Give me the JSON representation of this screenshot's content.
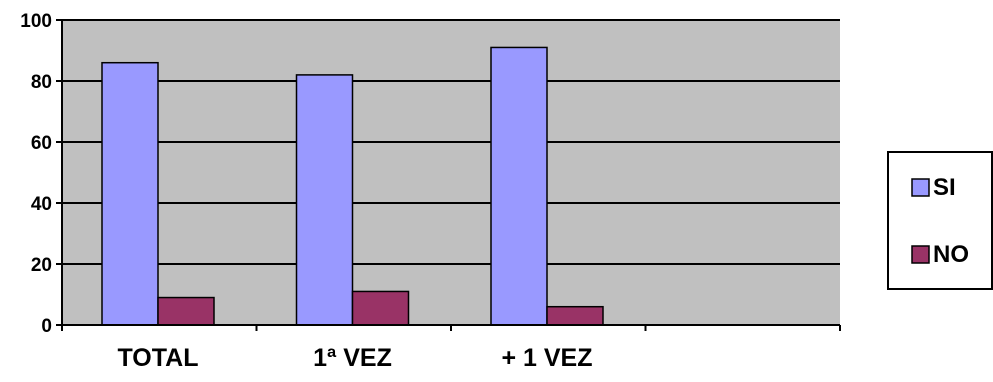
{
  "colors": {
    "plot_background": "#c0c0c0",
    "gridline": "#000000",
    "si": "#9999ff",
    "no": "#993366",
    "bar_border": "#000000"
  },
  "chart_data": {
    "type": "bar",
    "title": "",
    "xlabel": "",
    "ylabel": "",
    "categories": [
      "TOTAL",
      "1ª VEZ",
      "+ 1 VEZ",
      ""
    ],
    "series": [
      {
        "name": "SI",
        "values": [
          86,
          82,
          91,
          null
        ]
      },
      {
        "name": "NO",
        "values": [
          9,
          11,
          6,
          null
        ]
      }
    ],
    "ylim": [
      0,
      100
    ],
    "yticks": [
      "0",
      "20",
      "40",
      "60",
      "80",
      "100"
    ],
    "grid": true,
    "legend": "right"
  }
}
